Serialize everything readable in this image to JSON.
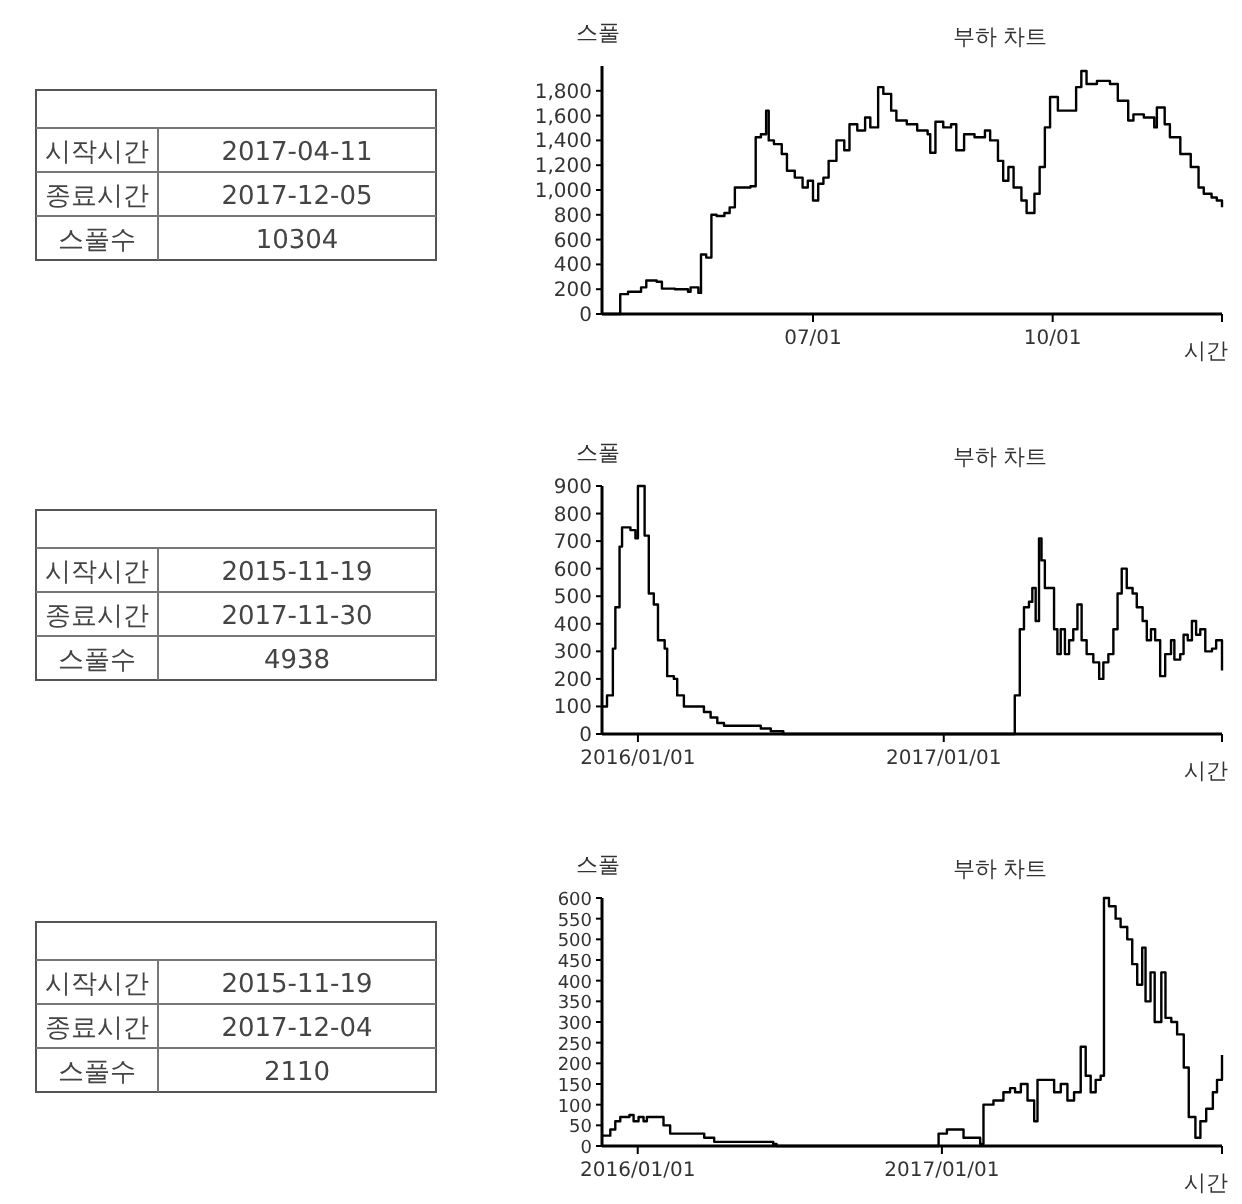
{
  "chart_data": [
    {
      "type": "other",
      "annotations": [
        "시작시간",
        "2017-04-11",
        "종료시간",
        "2017-12-05",
        "스풀수",
        "10304"
      ]
    },
    {
      "type": "step",
      "title": "부하 차트",
      "xlabel": "시간",
      "ylabel": "스풀",
      "color": "#000000",
      "xlim": [
        "2017-04-11",
        "2017-12-05"
      ],
      "xticks": [
        {
          "value": "2017-07-01",
          "label": "07/01"
        },
        {
          "value": "2017-10-01",
          "label": "10/01"
        }
      ],
      "ylim": [
        0,
        2000
      ],
      "yticks": [
        0,
        200,
        400,
        600,
        800,
        {
          "value": 1000,
          "label": "1,000"
        },
        {
          "value": 1200,
          "label": "1,200"
        },
        {
          "value": 1400,
          "label": "1,400"
        },
        {
          "value": 1600,
          "label": "1,600"
        },
        {
          "value": 1800,
          "label": "1,800"
        }
      ],
      "x": [
        "2017-04-11",
        "2017-04-17",
        "2017-04-18",
        "2017-04-21",
        "2017-04-26",
        "2017-04-28",
        "2017-05-02",
        "2017-05-04",
        "2017-05-09",
        "2017-05-14",
        "2017-05-15",
        "2017-05-18",
        "2017-05-19",
        "2017-05-21",
        "2017-05-23",
        "2017-05-25",
        "2017-05-28",
        "2017-05-30",
        "2017-06-01",
        "2017-06-07",
        "2017-06-09",
        "2017-06-11",
        "2017-06-13",
        "2017-06-14",
        "2017-06-16",
        "2017-06-19",
        "2017-06-21",
        "2017-06-24",
        "2017-06-27",
        "2017-06-29",
        "2017-07-01",
        "2017-07-03",
        "2017-07-05",
        "2017-07-07",
        "2017-07-10",
        "2017-07-13",
        "2017-07-15",
        "2017-07-18",
        "2017-07-21",
        "2017-07-23",
        "2017-07-26",
        "2017-07-28",
        "2017-07-31",
        "2017-08-02",
        "2017-08-06",
        "2017-08-10",
        "2017-08-14",
        "2017-08-15",
        "2017-08-17",
        "2017-08-20",
        "2017-08-23",
        "2017-08-25",
        "2017-08-28",
        "2017-09-01",
        "2017-09-05",
        "2017-09-07",
        "2017-09-10",
        "2017-09-12",
        "2017-09-14",
        "2017-09-16",
        "2017-09-19",
        "2017-09-21",
        "2017-09-24",
        "2017-09-26",
        "2017-09-28",
        "2017-09-30",
        "2017-10-03",
        "2017-10-08",
        "2017-10-10",
        "2017-10-12",
        "2017-10-14",
        "2017-10-18",
        "2017-10-23",
        "2017-10-26",
        "2017-10-30",
        "2017-11-01",
        "2017-11-05",
        "2017-11-09",
        "2017-11-10",
        "2017-11-13",
        "2017-11-15",
        "2017-11-19",
        "2017-11-23",
        "2017-11-26",
        "2017-11-28",
        "2017-12-01",
        "2017-12-03",
        "2017-12-05"
      ],
      "values": [
        0,
        0,
        160,
        180,
        215,
        270,
        260,
        205,
        200,
        180,
        215,
        170,
        480,
        455,
        800,
        790,
        815,
        860,
        1020,
        1030,
        1425,
        1450,
        1640,
        1400,
        1370,
        1290,
        1155,
        1100,
        1020,
        1075,
        915,
        1050,
        1100,
        1235,
        1400,
        1320,
        1530,
        1480,
        1585,
        1505,
        1830,
        1775,
        1640,
        1560,
        1530,
        1480,
        1450,
        1300,
        1550,
        1505,
        1530,
        1320,
        1450,
        1425,
        1480,
        1400,
        1235,
        1075,
        1185,
        1020,
        915,
        815,
        970,
        1185,
        1505,
        1750,
        1640,
        1640,
        1830,
        1960,
        1855,
        1880,
        1855,
        1720,
        1560,
        1610,
        1585,
        1505,
        1665,
        1530,
        1425,
        1290,
        1185,
        1020,
        970,
        940,
        915,
        860
      ]
    },
    {
      "type": "other",
      "annotations": [
        "시작시간",
        "2015-11-19",
        "종료시간",
        "2017-11-30",
        "스풀수",
        "4938"
      ]
    },
    {
      "type": "step",
      "title": "부하 차트",
      "xlabel": "시간",
      "ylabel": "스풀",
      "color": "#000000",
      "xlim": [
        "2015-11-19",
        "2017-11-30"
      ],
      "xticks": [
        {
          "value": "2016-01-01",
          "label": "2016/01/01"
        },
        {
          "value": "2017-01-01",
          "label": "2017/01/01"
        }
      ],
      "ylim": [
        0,
        900
      ],
      "yticks": [
        0,
        100,
        200,
        300,
        400,
        500,
        600,
        700,
        800,
        900
      ],
      "x": [
        "2015-11-19",
        "2015-11-25",
        "2015-12-02",
        "2015-12-05",
        "2015-12-10",
        "2015-12-13",
        "2015-12-23",
        "2015-12-29",
        "2016-01-01",
        "2016-01-06",
        "2016-01-09",
        "2016-01-14",
        "2016-01-20",
        "2016-01-25",
        "2016-02-02",
        "2016-02-05",
        "2016-02-13",
        "2016-02-17",
        "2016-02-25",
        "2016-03-12",
        "2016-03-20",
        "2016-03-28",
        "2016-04-05",
        "2016-04-13",
        "2016-05-11",
        "2016-05-27",
        "2016-06-08",
        "2016-06-21",
        "2016-06-23",
        "2017-03-18",
        "2017-03-27",
        "2017-04-02",
        "2017-04-07",
        "2017-04-13",
        "2017-04-17",
        "2017-04-21",
        "2017-04-25",
        "2017-04-28",
        "2017-05-02",
        "2017-05-09",
        "2017-05-13",
        "2017-05-17",
        "2017-05-21",
        "2017-05-26",
        "2017-05-31",
        "2017-06-05",
        "2017-06-10",
        "2017-06-15",
        "2017-06-21",
        "2017-06-29",
        "2017-07-06",
        "2017-07-11",
        "2017-07-17",
        "2017-07-23",
        "2017-07-28",
        "2017-08-02",
        "2017-08-08",
        "2017-08-15",
        "2017-08-20",
        "2017-08-27",
        "2017-09-01",
        "2017-09-06",
        "2017-09-11",
        "2017-09-17",
        "2017-09-23",
        "2017-09-30",
        "2017-10-04",
        "2017-10-11",
        "2017-10-15",
        "2017-10-20",
        "2017-10-25",
        "2017-10-30",
        "2017-11-04",
        "2017-11-10",
        "2017-11-18",
        "2017-11-23",
        "2017-11-30"
      ],
      "values": [
        100,
        140,
        310,
        460,
        680,
        750,
        740,
        710,
        900,
        900,
        720,
        510,
        470,
        340,
        310,
        210,
        200,
        140,
        100,
        100,
        80,
        60,
        40,
        30,
        30,
        20,
        10,
        10,
        0,
        0,
        140,
        380,
        460,
        480,
        530,
        410,
        710,
        630,
        530,
        530,
        380,
        290,
        380,
        290,
        340,
        380,
        470,
        340,
        290,
        260,
        200,
        260,
        290,
        380,
        510,
        600,
        530,
        510,
        460,
        410,
        340,
        380,
        340,
        210,
        290,
        340,
        270,
        290,
        360,
        340,
        410,
        360,
        380,
        300,
        310,
        340,
        230
      ]
    },
    {
      "type": "other",
      "annotations": [
        "시작시간",
        "2015-11-19",
        "종료시간",
        "2017-12-04",
        "스풀수",
        "2110"
      ]
    },
    {
      "type": "step",
      "title": "부하 차트",
      "xlabel": "시간",
      "ylabel": "스풀",
      "color": "#000000",
      "xlim": [
        "2015-11-19",
        "2017-12-04"
      ],
      "xticks": [
        {
          "value": "2016-01-01",
          "label": "2016/01/01"
        },
        {
          "value": "2017-01-01",
          "label": "2017/01/01"
        }
      ],
      "ylim": [
        0,
        600
      ],
      "yticks": [
        0,
        50,
        100,
        150,
        200,
        250,
        300,
        350,
        400,
        450,
        500,
        550,
        600
      ],
      "x": [
        "2015-11-19",
        "2015-11-29",
        "2015-12-05",
        "2015-12-11",
        "2015-12-22",
        "2015-12-27",
        "2016-01-02",
        "2016-01-08",
        "2016-01-12",
        "2016-01-21",
        "2016-02-01",
        "2016-02-09",
        "2016-03-17",
        "2016-03-21",
        "2016-04-02",
        "2016-06-12",
        "2016-06-16",
        "2016-12-26",
        "2016-12-28",
        "2017-01-07",
        "2017-01-19",
        "2017-01-27",
        "2017-02-08",
        "2017-02-16",
        "2017-02-20",
        "2017-03-04",
        "2017-03-16",
        "2017-03-24",
        "2017-03-30",
        "2017-04-06",
        "2017-04-14",
        "2017-04-22",
        "2017-04-26",
        "2017-05-08",
        "2017-05-16",
        "2017-05-24",
        "2017-06-01",
        "2017-06-09",
        "2017-06-17",
        "2017-06-23",
        "2017-06-29",
        "2017-07-05",
        "2017-07-11",
        "2017-07-15",
        "2017-07-21",
        "2017-07-29",
        "2017-08-04",
        "2017-08-12",
        "2017-08-18",
        "2017-08-24",
        "2017-08-30",
        "2017-09-03",
        "2017-09-09",
        "2017-09-14",
        "2017-09-22",
        "2017-09-27",
        "2017-10-04",
        "2017-10-11",
        "2017-10-19",
        "2017-10-25",
        "2017-11-02",
        "2017-11-08",
        "2017-11-15",
        "2017-11-23",
        "2017-11-28",
        "2017-12-04"
      ],
      "values": [
        25,
        40,
        60,
        70,
        75,
        60,
        70,
        60,
        70,
        70,
        50,
        30,
        30,
        20,
        10,
        5,
        0,
        0,
        30,
        40,
        40,
        20,
        20,
        5,
        100,
        110,
        130,
        140,
        130,
        150,
        110,
        60,
        160,
        160,
        130,
        150,
        110,
        130,
        240,
        170,
        130,
        160,
        170,
        600,
        580,
        550,
        530,
        500,
        440,
        390,
        480,
        350,
        420,
        300,
        420,
        310,
        300,
        270,
        190,
        70,
        20,
        60,
        90,
        130,
        160,
        220
      ]
    }
  ]
}
